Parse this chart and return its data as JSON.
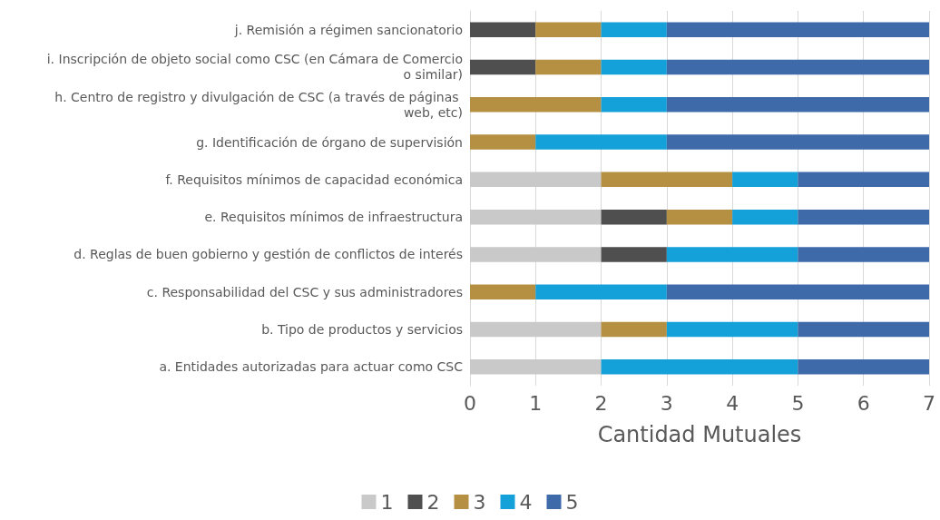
{
  "chart_data": {
    "type": "bar",
    "orientation": "horizontal",
    "stacked": true,
    "xlabel": "Cantidad Mutuales",
    "categories": [
      "j. Remisión a régimen sancionatorio",
      "i. Inscripción de objeto social como CSC (en Cámara de Comercio o similar)",
      "h. Centro de registro y divulgación de CSC (a través de páginas web, etc)",
      "g. Identificación de órgano de supervisión",
      "f. Requisitos mínimos de capacidad económica",
      "e. Requisitos mínimos de infraestructura",
      "d. Reglas de buen gobierno y gestión de conflictos de interés",
      "c. Responsabilidad del CSC y sus administradores",
      "b. Tipo de productos y servicios",
      "a. Entidades autorizadas para actuar como CSC"
    ],
    "series": [
      {
        "name": "1",
        "color": "#c9c9c9",
        "values": [
          0,
          0,
          0,
          0,
          2,
          2,
          2,
          0,
          2,
          2
        ]
      },
      {
        "name": "2",
        "color": "#4f4f4f",
        "values": [
          1,
          1,
          0,
          0,
          0,
          1,
          1,
          0,
          0,
          0
        ]
      },
      {
        "name": "3",
        "color": "#b58f42",
        "values": [
          1,
          1,
          2,
          1,
          2,
          1,
          0,
          1,
          1,
          0
        ]
      },
      {
        "name": "4",
        "color": "#14a0d8",
        "values": [
          1,
          1,
          1,
          2,
          1,
          1,
          2,
          2,
          2,
          3
        ]
      },
      {
        "name": "5",
        "color": "#3e6aaa",
        "values": [
          4,
          4,
          4,
          4,
          2,
          2,
          2,
          4,
          2,
          2
        ]
      }
    ],
    "xlim": [
      0,
      7
    ],
    "xticks": [
      0,
      1,
      2,
      3,
      4,
      5,
      6,
      7
    ],
    "grid": "x",
    "legend": "bottom"
  }
}
